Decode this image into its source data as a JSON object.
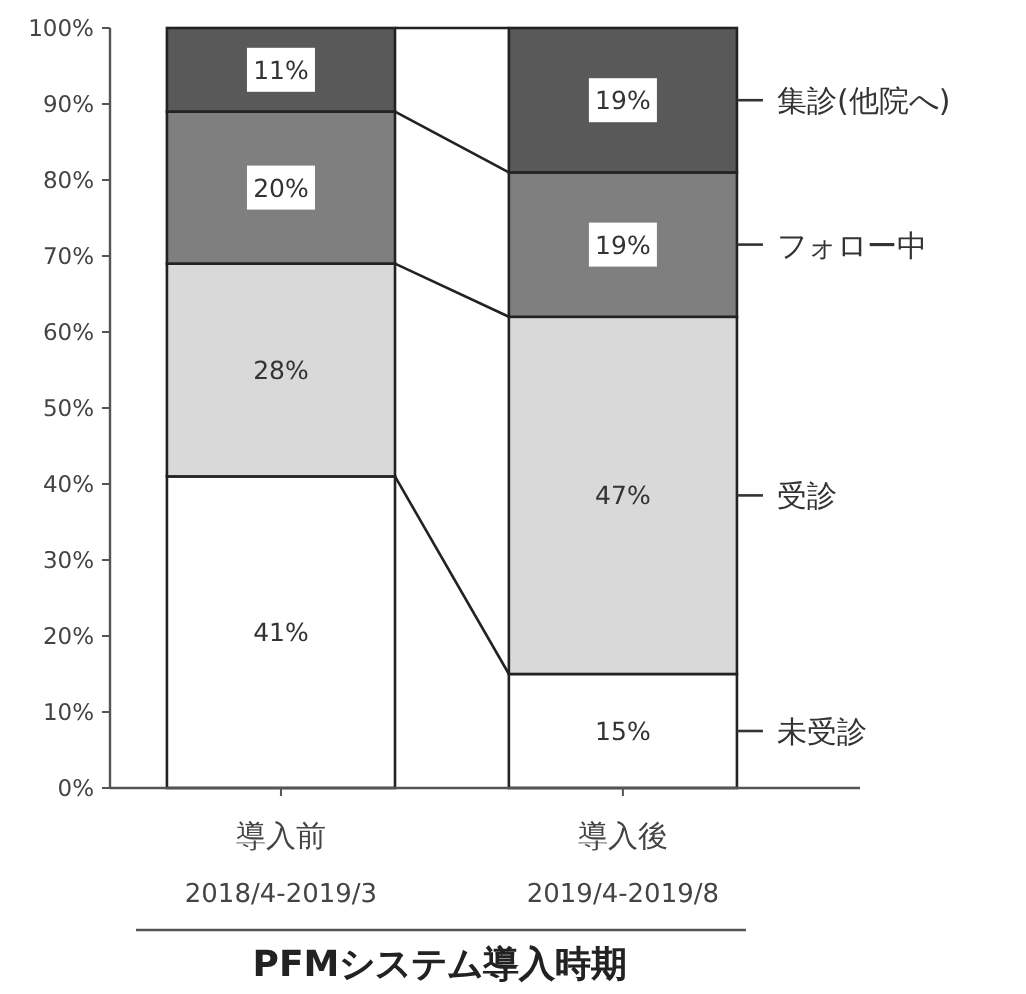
{
  "chart_data": {
    "type": "bar",
    "stacked": true,
    "xlabel": "PFMシステム導入時期",
    "categories": [
      "導入前\n2018/4-2019/3",
      "導入後\n2019/4-2019/8"
    ],
    "series": [
      {
        "name": "未受診",
        "color": "#ffffff",
        "values": [
          41,
          15
        ],
        "value_labels": [
          "41%",
          "15%"
        ]
      },
      {
        "name": "受診",
        "color": "#d9d9d9",
        "values": [
          28,
          47
        ],
        "value_labels": [
          "28%",
          "47%"
        ]
      },
      {
        "name": "フォロー中",
        "color": "#7f7f7f",
        "values": [
          20,
          19
        ],
        "value_labels": [
          "20%",
          "19%"
        ]
      },
      {
        "name": "集診(他院へ)",
        "color": "#595959",
        "values": [
          11,
          19
        ],
        "value_labels": [
          "11%",
          "19%"
        ]
      }
    ],
    "ylim": [
      0,
      100
    ],
    "yticks": [
      {
        "value": 0,
        "label": "0%"
      },
      {
        "value": 10,
        "label": "10%"
      },
      {
        "value": 20,
        "label": "20%"
      },
      {
        "value": 30,
        "label": "30%"
      },
      {
        "value": 40,
        "label": "40%"
      },
      {
        "value": 50,
        "label": "50%"
      },
      {
        "value": 60,
        "label": "60%"
      },
      {
        "value": 70,
        "label": "70%"
      },
      {
        "value": 80,
        "label": "80%"
      },
      {
        "value": 90,
        "label": "90%"
      },
      {
        "value": 100,
        "label": "100%"
      }
    ],
    "grid": false,
    "legend": false
  }
}
